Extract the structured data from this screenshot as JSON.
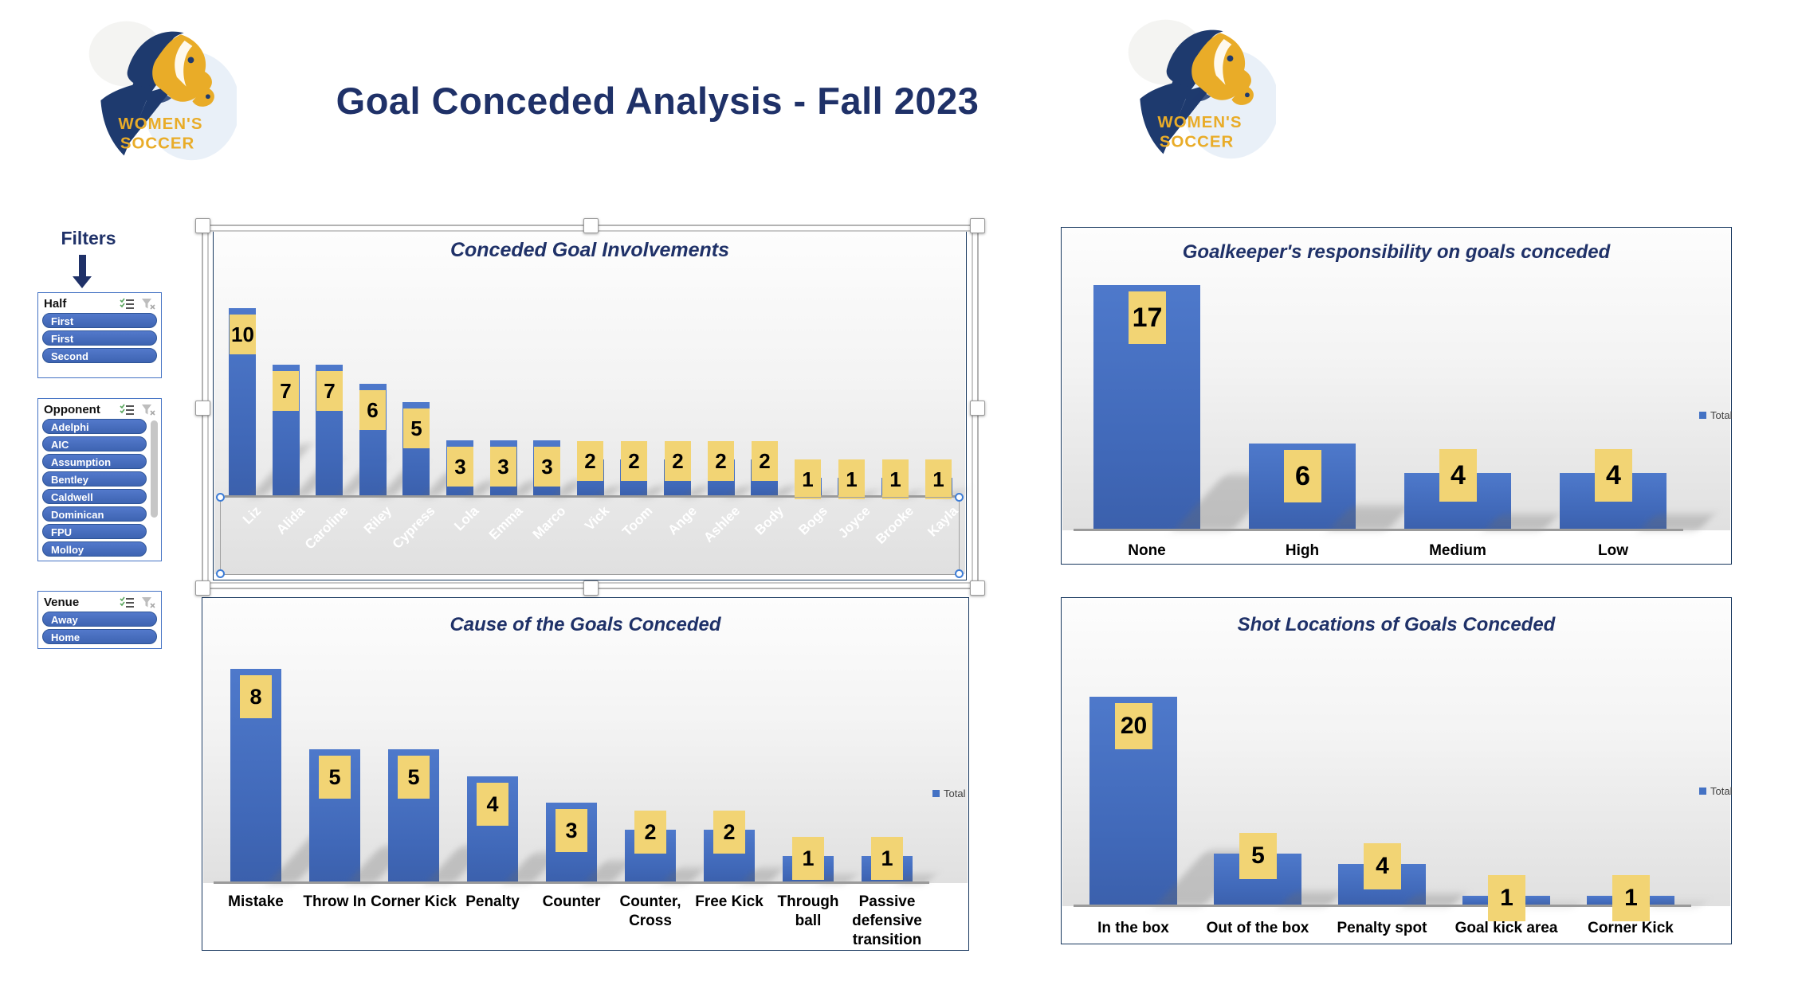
{
  "header": {
    "title": "Goal Conceded Analysis - Fall 2023"
  },
  "logo": {
    "top_text": "WOMEN'S",
    "bottom_text": "SOCCER"
  },
  "filters": {
    "title": "Filters",
    "slicers": [
      {
        "label": "Half",
        "items": [
          "First",
          "First",
          "Second"
        ]
      },
      {
        "label": "Opponent",
        "items": [
          "Adelphi",
          "AIC",
          "Assumption",
          "Bentley",
          "Caldwell",
          "Dominican",
          "FPU",
          "Molloy"
        ]
      },
      {
        "label": "Venue",
        "items": [
          "Away",
          "Home"
        ]
      }
    ]
  },
  "chart_data": [
    {
      "type": "bar",
      "title": "Conceded Goal Involvements",
      "categories": [
        "Liz",
        "Alida",
        "Caroline",
        "Riley",
        "Cypress",
        "Lola",
        "Emma",
        "Marco",
        "Vick",
        "Toom",
        "Ange",
        "Ashlee",
        "Body",
        "Bogs",
        "Joyce",
        "Brooke",
        "Kayla"
      ],
      "values": [
        10,
        7,
        7,
        6,
        5,
        3,
        3,
        3,
        2,
        2,
        2,
        2,
        2,
        1,
        1,
        1,
        1
      ],
      "legend": null,
      "data_labels": true,
      "selected": true,
      "ylim": [
        0,
        10
      ]
    },
    {
      "type": "bar",
      "title": "Goalkeeper's responsibility on goals conceded",
      "categories": [
        "None",
        "High",
        "Medium",
        "Low"
      ],
      "values": [
        17,
        6,
        4,
        4
      ],
      "legend": "Total",
      "legend_position": "right",
      "data_labels": true,
      "ylim": [
        0,
        17
      ]
    },
    {
      "type": "bar",
      "title": "Cause of the Goals Conceded",
      "categories": [
        "Mistake",
        "Throw In",
        "Corner Kick",
        "Penalty",
        "Counter",
        "Counter, Cross",
        "Free Kick",
        "Through ball",
        "Passive defensive transition"
      ],
      "values": [
        8,
        5,
        5,
        4,
        3,
        2,
        2,
        1,
        1
      ],
      "legend": "Total",
      "legend_position": "right",
      "data_labels": true,
      "ylim": [
        0,
        8
      ]
    },
    {
      "type": "bar",
      "title": "Shot Locations of Goals Conceded",
      "categories": [
        "In the box",
        "Out of the box",
        "Penalty spot",
        "Goal kick area",
        "Corner Kick"
      ],
      "values": [
        20,
        5,
        4,
        1,
        1
      ],
      "legend": "Total",
      "legend_position": "right",
      "data_labels": true,
      "ylim": [
        0,
        20
      ]
    }
  ],
  "colors": {
    "navy": "#1F3168",
    "bar_blue": "#4472C4",
    "label_yellow": "#F2D474",
    "slicer_blue": "#4472C4",
    "logo_gold": "#E9AC28"
  },
  "icons": {
    "multi_select": "checklist-icon",
    "clear_filter": "funnel-x-icon",
    "filters_arrow": "down-arrow-icon"
  }
}
